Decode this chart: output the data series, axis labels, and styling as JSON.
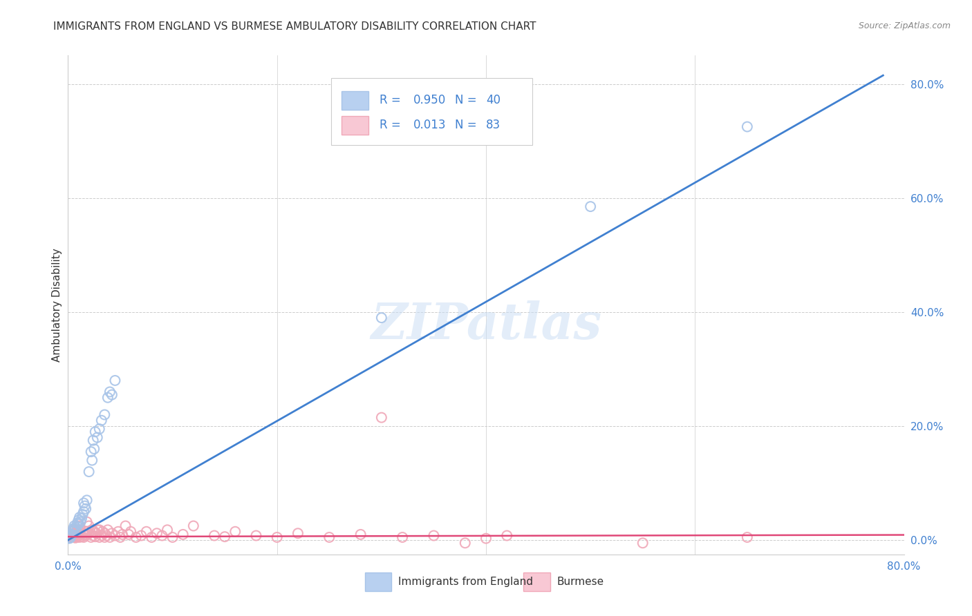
{
  "title": "IMMIGRANTS FROM ENGLAND VS BURMESE AMBULATORY DISABILITY CORRELATION CHART",
  "source": "Source: ZipAtlas.com",
  "ylabel": "Ambulatory Disability",
  "xlim": [
    0.0,
    0.8
  ],
  "ylim": [
    -0.025,
    0.85
  ],
  "legend_blue_r": "0.950",
  "legend_blue_n": "40",
  "legend_pink_r": "0.013",
  "legend_pink_n": "83",
  "legend_label_blue": "Immigrants from England",
  "legend_label_pink": "Burmese",
  "watermark": "ZIPatlas",
  "blue_marker_color": "#a8c4e8",
  "pink_marker_color": "#f0a8b8",
  "blue_fill_color": "#b8d0f0",
  "pink_fill_color": "#f8c8d4",
  "blue_line_color": "#4080d0",
  "pink_line_color": "#e04878",
  "text_blue_color": "#4080d0",
  "text_dark_color": "#333333",
  "grid_color": "#cccccc",
  "axis_tick_color": "#4080d0",
  "source_color": "#888888",
  "blue_scatter_x": [
    0.002,
    0.003,
    0.004,
    0.005,
    0.005,
    0.006,
    0.006,
    0.007,
    0.008,
    0.009,
    0.01,
    0.01,
    0.011,
    0.012,
    0.013,
    0.014,
    0.015,
    0.015,
    0.016,
    0.017,
    0.018,
    0.02,
    0.022,
    0.023,
    0.024,
    0.025,
    0.026,
    0.028,
    0.03,
    0.032,
    0.035,
    0.038,
    0.04,
    0.042,
    0.045,
    0.3,
    0.5,
    0.65,
    0.001,
    0.002
  ],
  "blue_scatter_y": [
    0.005,
    0.008,
    0.01,
    0.015,
    0.02,
    0.018,
    0.025,
    0.022,
    0.016,
    0.03,
    0.028,
    0.035,
    0.04,
    0.032,
    0.038,
    0.045,
    0.05,
    0.065,
    0.06,
    0.055,
    0.07,
    0.12,
    0.155,
    0.14,
    0.175,
    0.16,
    0.19,
    0.18,
    0.195,
    0.21,
    0.22,
    0.25,
    0.26,
    0.255,
    0.28,
    0.39,
    0.585,
    0.725,
    0.003,
    0.004
  ],
  "pink_scatter_x": [
    0.001,
    0.002,
    0.002,
    0.003,
    0.003,
    0.004,
    0.004,
    0.005,
    0.005,
    0.006,
    0.006,
    0.007,
    0.007,
    0.008,
    0.008,
    0.009,
    0.009,
    0.01,
    0.01,
    0.011,
    0.011,
    0.012,
    0.012,
    0.013,
    0.014,
    0.015,
    0.015,
    0.016,
    0.017,
    0.018,
    0.018,
    0.02,
    0.02,
    0.022,
    0.023,
    0.024,
    0.025,
    0.026,
    0.027,
    0.028,
    0.03,
    0.03,
    0.032,
    0.033,
    0.035,
    0.035,
    0.037,
    0.038,
    0.04,
    0.042,
    0.045,
    0.048,
    0.05,
    0.052,
    0.055,
    0.058,
    0.06,
    0.065,
    0.07,
    0.075,
    0.08,
    0.085,
    0.09,
    0.095,
    0.1,
    0.11,
    0.12,
    0.14,
    0.15,
    0.16,
    0.18,
    0.2,
    0.22,
    0.25,
    0.28,
    0.3,
    0.32,
    0.35,
    0.38,
    0.4,
    0.42,
    0.55,
    0.65
  ],
  "pink_scatter_y": [
    0.005,
    0.008,
    0.004,
    0.01,
    0.006,
    0.007,
    0.015,
    0.005,
    0.012,
    0.008,
    0.018,
    0.01,
    0.004,
    0.006,
    0.015,
    0.005,
    0.012,
    0.008,
    0.018,
    0.005,
    0.025,
    0.01,
    0.018,
    0.006,
    0.012,
    0.005,
    0.016,
    0.01,
    0.008,
    0.015,
    0.032,
    0.012,
    0.025,
    0.005,
    0.018,
    0.008,
    0.015,
    0.006,
    0.012,
    0.018,
    0.005,
    0.018,
    0.008,
    0.015,
    0.005,
    0.012,
    0.008,
    0.018,
    0.005,
    0.012,
    0.008,
    0.015,
    0.005,
    0.01,
    0.025,
    0.01,
    0.015,
    0.005,
    0.008,
    0.015,
    0.005,
    0.012,
    0.008,
    0.018,
    0.005,
    0.01,
    0.025,
    0.008,
    0.006,
    0.015,
    0.008,
    0.005,
    0.012,
    0.005,
    0.01,
    0.215,
    0.005,
    0.008,
    -0.005,
    0.003,
    0.008,
    -0.005,
    0.005
  ],
  "blue_line_x": [
    0.0,
    0.78
  ],
  "blue_line_y": [
    0.0,
    0.815
  ],
  "pink_line_x": [
    0.0,
    0.8
  ],
  "pink_line_y_intercept": 0.006,
  "pink_line_y_slope": 0.004,
  "ytick_vals": [
    0.0,
    0.2,
    0.4,
    0.6,
    0.8
  ],
  "ytick_labels": [
    "0.0%",
    "20.0%",
    "40.0%",
    "60.0%",
    "80.0%"
  ],
  "xtick_left": "0.0%",
  "xtick_right": "80.0%"
}
